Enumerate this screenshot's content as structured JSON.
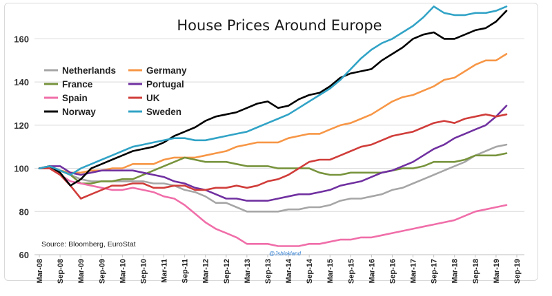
{
  "chart_data": {
    "type": "line",
    "title": "House Prices Around Europe",
    "source": "Source: Bloomberg, EuroStat",
    "watermark": "@Jsblokland",
    "x": [
      "2008-03",
      "2008-06",
      "2008-09",
      "2008-12",
      "2009-03",
      "2009-06",
      "2009-09",
      "2009-12",
      "2010-03",
      "2010-06",
      "2010-09",
      "2010-12",
      "2011-03",
      "2011-06",
      "2011-09",
      "2011-12",
      "2012-03",
      "2012-06",
      "2012-09",
      "2012-12",
      "2013-03",
      "2013-06",
      "2013-09",
      "2013-12",
      "2014-03",
      "2014-06",
      "2014-09",
      "2014-12",
      "2015-03",
      "2015-06",
      "2015-09",
      "2015-12",
      "2016-03",
      "2016-06",
      "2016-09",
      "2016-12",
      "2017-03",
      "2017-06",
      "2017-09",
      "2017-12",
      "2018-03",
      "2018-06",
      "2018-09",
      "2018-12",
      "2019-03",
      "2019-06"
    ],
    "x_tick_labels": [
      "Mar-08",
      "Sep-08",
      "Mar-09",
      "Sep-09",
      "Mar-10",
      "Sep-10",
      "Mar-11",
      "Sep-11",
      "Mar-12",
      "Sep-12",
      "Mar-13",
      "Sep-13",
      "Mar-14",
      "Sep-14",
      "Mar-15",
      "Sep-15",
      "Mar-16",
      "Sep-16",
      "Mar-17",
      "Sep-17",
      "Mar-18",
      "Sep-18",
      "Mar-19",
      "Sep-19"
    ],
    "ylim": [
      60,
      178
    ],
    "y_ticks": [
      60,
      80,
      100,
      120,
      140,
      160
    ],
    "grid": "horizontal",
    "legend_position": "top-left",
    "series": [
      {
        "name": "Netherlands",
        "color": "#a6a6a6",
        "values": [
          100,
          101,
          99,
          97,
          95,
          94,
          94,
          94,
          94,
          94,
          94,
          93,
          93,
          92,
          90,
          89,
          87,
          84,
          84,
          82,
          80,
          80,
          80,
          80,
          81,
          81,
          82,
          82,
          83,
          85,
          86,
          86,
          87,
          88,
          90,
          91,
          93,
          95,
          97,
          99,
          101,
          103,
          106,
          108,
          110,
          111
        ]
      },
      {
        "name": "Germany",
        "color": "#f79646",
        "values": [
          100,
          101,
          99,
          98,
          98,
          99,
          99,
          100,
          100,
          102,
          102,
          102,
          104,
          105,
          105,
          105,
          106,
          107,
          108,
          110,
          111,
          112,
          112,
          112,
          114,
          115,
          116,
          116,
          118,
          120,
          121,
          123,
          125,
          128,
          131,
          133,
          134,
          136,
          138,
          141,
          142,
          145,
          148,
          150,
          150,
          153
        ]
      },
      {
        "name": "France",
        "color": "#77933c",
        "values": [
          100,
          101,
          99,
          97,
          93,
          93,
          94,
          94,
          95,
          95,
          97,
          99,
          101,
          103,
          105,
          104,
          103,
          103,
          103,
          102,
          101,
          101,
          101,
          100,
          100,
          100,
          100,
          98,
          97,
          97,
          98,
          98,
          98,
          98,
          99,
          100,
          100,
          101,
          103,
          103,
          103,
          104,
          106,
          106,
          106,
          107
        ]
      },
      {
        "name": "Portugal",
        "color": "#7030a0",
        "values": [
          100,
          101,
          101,
          98,
          97,
          98,
          99,
          99,
          99,
          99,
          98,
          97,
          96,
          94,
          93,
          91,
          90,
          88,
          86,
          86,
          85,
          85,
          85,
          86,
          87,
          88,
          88,
          89,
          90,
          92,
          93,
          94,
          96,
          98,
          99,
          101,
          103,
          106,
          109,
          111,
          114,
          116,
          118,
          120,
          124,
          129
        ]
      },
      {
        "name": "Spain",
        "color": "#f06ea9",
        "values": [
          100,
          100,
          97,
          94,
          93,
          92,
          91,
          90,
          90,
          91,
          90,
          89,
          87,
          86,
          83,
          79,
          75,
          72,
          70,
          68,
          65,
          65,
          65,
          64,
          64,
          64,
          65,
          65,
          66,
          67,
          67,
          68,
          68,
          69,
          70,
          71,
          72,
          73,
          74,
          75,
          76,
          78,
          80,
          81,
          82,
          83
        ]
      },
      {
        "name": "UK",
        "color": "#d03d3a",
        "values": [
          100,
          100,
          97,
          92,
          86,
          88,
          90,
          92,
          92,
          93,
          93,
          91,
          91,
          92,
          92,
          90,
          90,
          91,
          91,
          92,
          91,
          92,
          94,
          95,
          97,
          100,
          103,
          104,
          104,
          106,
          108,
          110,
          111,
          113,
          115,
          116,
          117,
          119,
          121,
          122,
          121,
          123,
          124,
          125,
          124,
          125
        ]
      },
      {
        "name": "Norway",
        "color": "#000000",
        "values": [
          100,
          101,
          98,
          92,
          95,
          100,
          102,
          104,
          106,
          108,
          109,
          110,
          112,
          115,
          117,
          119,
          122,
          124,
          125,
          126,
          128,
          130,
          131,
          128,
          129,
          132,
          134,
          135,
          138,
          142,
          144,
          145,
          146,
          150,
          153,
          156,
          160,
          162,
          163,
          160,
          160,
          162,
          164,
          165,
          168,
          173
        ]
      },
      {
        "name": "Sweden",
        "color": "#31a3c6",
        "values": [
          100,
          101,
          99,
          97,
          100,
          102,
          104,
          106,
          108,
          110,
          111,
          112,
          113,
          114,
          114,
          113,
          113,
          114,
          115,
          116,
          117,
          119,
          121,
          123,
          125,
          128,
          131,
          134,
          137,
          141,
          146,
          151,
          155,
          158,
          160,
          163,
          166,
          170,
          175,
          172,
          171,
          171,
          172,
          172,
          173,
          175
        ]
      }
    ]
  }
}
